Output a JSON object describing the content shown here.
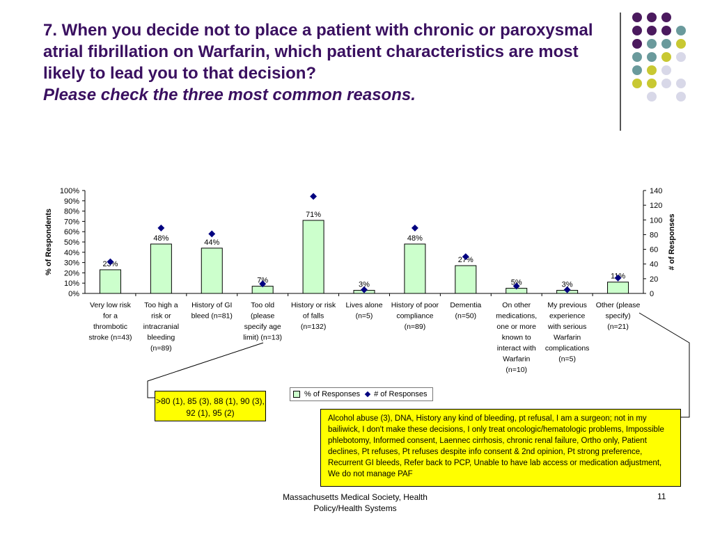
{
  "slide": {
    "question": "7. When you decide not to place a patient with chronic or paroxysmal atrial fibrillation on Warfarin, which patient characteristics are most likely to lead you to that decision?",
    "instruction": "Please check the three most common reasons.",
    "footer": "Massachusetts Medical Society, Health Policy/Health Systems",
    "page_number": "11"
  },
  "colors": {
    "title": "#3a1060",
    "bar": "#ccffcc",
    "marker": "#000080",
    "note": "#ffff00"
  },
  "decor_dots": [
    [
      "#4b1a5e",
      "#4b1a5e",
      "#4b1a5e",
      ""
    ],
    [
      "#4b1a5e",
      "#4b1a5e",
      "#4b1a5e",
      "#6a9a9c"
    ],
    [
      "#4b1a5e",
      "#6a9a9c",
      "#6a9a9c",
      "#c8c832"
    ],
    [
      "#6a9a9c",
      "#6a9a9c",
      "#c8c832",
      "#d8d8e8"
    ],
    [
      "#6a9a9c",
      "#c8c832",
      "#d8d8e8",
      ""
    ],
    [
      "#c8c832",
      "#c8c832",
      "#d8d8e8",
      "#d8d8e8"
    ],
    [
      "",
      "#d8d8e8",
      "",
      "#d8d8e8"
    ]
  ],
  "chart_data": {
    "type": "bar",
    "categories": [
      [
        "Very low risk",
        "for a",
        "thrombotic",
        "stroke (n=43)"
      ],
      [
        "Too high a",
        "risk or",
        "intracranial",
        "bleeding",
        "(n=89)"
      ],
      [
        "History of GI",
        "bleed (n=81)"
      ],
      [
        "Too old",
        "(please",
        "specify age",
        "limit) (n=13)"
      ],
      [
        "History or risk",
        "of falls",
        "(n=132)"
      ],
      [
        "Lives alone",
        "(n=5)"
      ],
      [
        "History of poor",
        "compliance",
        "(n=89)"
      ],
      [
        "Dementia",
        "(n=50)"
      ],
      [
        "On other",
        "medications,",
        "one or more",
        "known to",
        "interact with",
        "Warfarin",
        "(n=10)"
      ],
      [
        "My previous",
        "experience",
        "with serious",
        "Warfarin",
        "complications",
        "(n=5)"
      ],
      [
        "Other (please",
        "specify)",
        "(n=21)"
      ]
    ],
    "series": [
      {
        "name": "% of Responses",
        "axis": "left",
        "values": [
          23,
          48,
          44,
          7,
          71,
          3,
          48,
          27,
          5,
          3,
          11
        ],
        "labels": [
          "23%",
          "48%",
          "44%",
          "7%",
          "71%",
          "3%",
          "48%",
          "27%",
          "5%",
          "3%",
          "11%"
        ]
      },
      {
        "name": "# of Responses",
        "axis": "right",
        "values": [
          43,
          89,
          81,
          13,
          132,
          5,
          89,
          50,
          10,
          5,
          21
        ]
      }
    ],
    "ylabel": "% of Respondents",
    "y2label": "# of Responses",
    "ylim": [
      0,
      100
    ],
    "y2lim": [
      0,
      140
    ],
    "yticks": [
      "0%",
      "10%",
      "20%",
      "30%",
      "40%",
      "50%",
      "60%",
      "70%",
      "80%",
      "90%",
      "100%"
    ],
    "y2ticks": [
      "0",
      "20",
      "40",
      "60",
      "80",
      "100",
      "120",
      "140"
    ],
    "legend": "bottom-center"
  },
  "notes": {
    "age": ">80 (1), 85 (3), 88 (1), 90 (3), 92 (1), 95 (2)",
    "other": "Alcohol abuse (3), DNA, History any kind of bleeding, pt refusal, I am a surgeon; not in my bailiwick, I don't make these decisions, I only treat oncologic/hematologic problems, Impossible phlebotomy, Informed consent, Laennec cirrhosis, chronic renal failure, Ortho only, Patient declines, Pt refuses, Pt refuses despite info consent & 2nd opinion, Pt strong preference, Recurrent GI bleeds, Refer back to PCP, Unable to have lab access or medication adjustment, We do not manage PAF"
  }
}
